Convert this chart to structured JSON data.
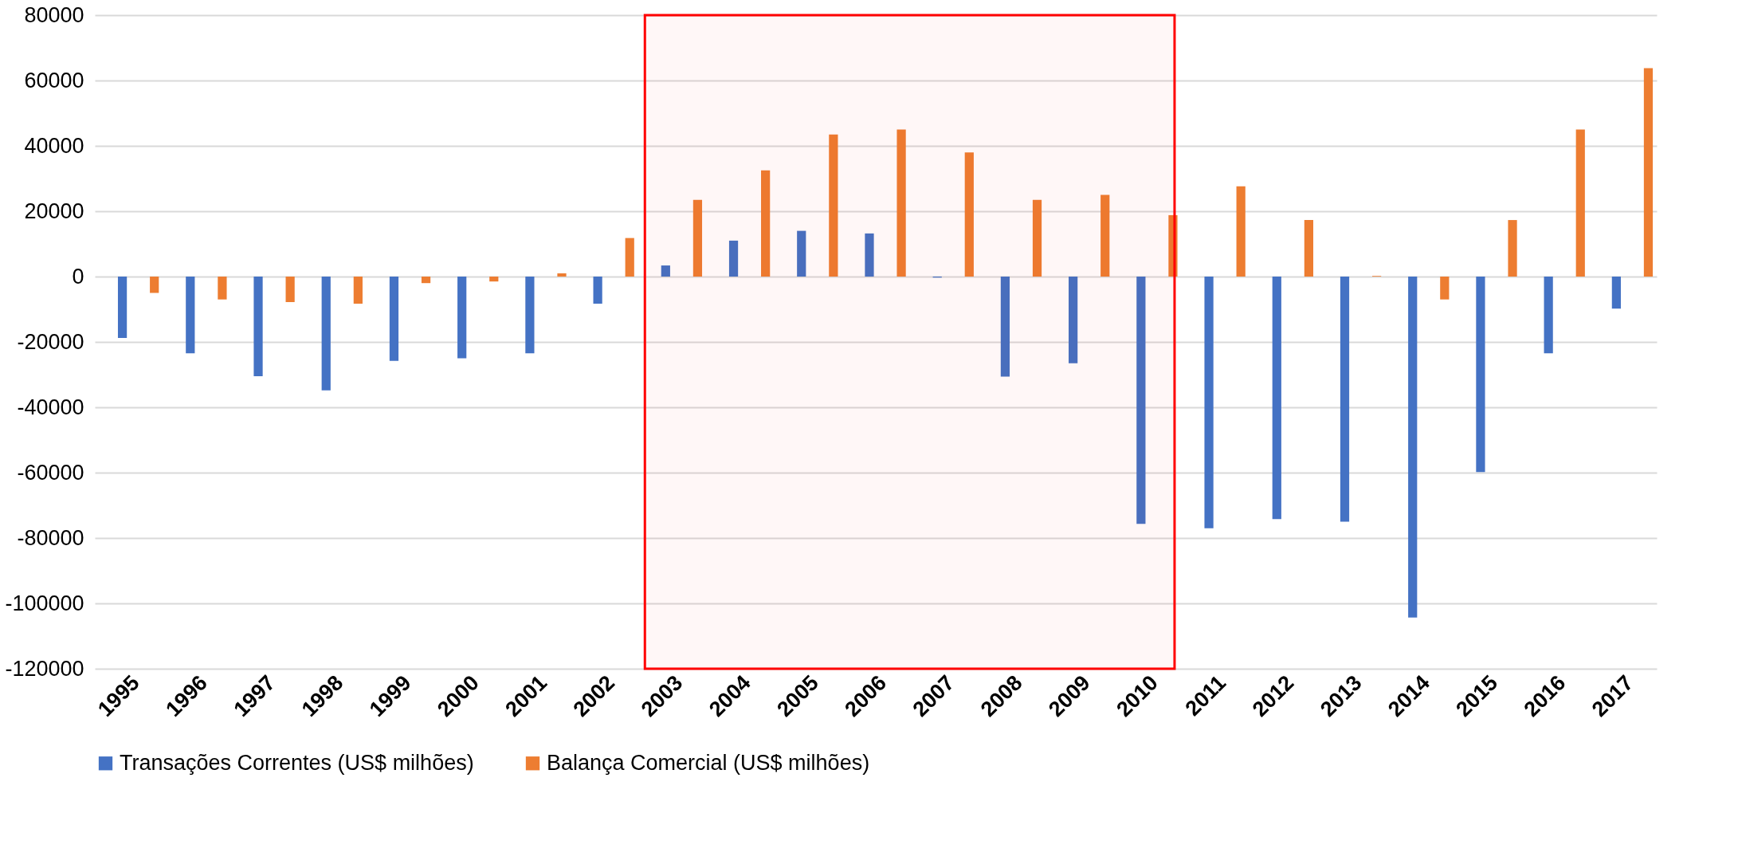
{
  "chart_data": {
    "type": "bar",
    "categories": [
      "1995",
      "1996",
      "1997",
      "1998",
      "1999",
      "2000",
      "2001",
      "2002",
      "2003",
      "2004",
      "2005",
      "2006",
      "2007",
      "2008",
      "2009",
      "2010",
      "2011",
      "2012",
      "2013",
      "2014",
      "2015",
      "2016",
      "2017"
    ],
    "series": [
      {
        "name": "Transações Correntes (US$ milhões)",
        "color": "#4472c4",
        "values": [
          -18800,
          -23500,
          -30500,
          -34800,
          -25800,
          -25000,
          -23500,
          -8300,
          3400,
          11000,
          14000,
          13200,
          -300,
          -30600,
          -26500,
          -75700,
          -77000,
          -74200,
          -75000,
          -104300,
          -59800,
          -23500,
          -9800
        ]
      },
      {
        "name": "Balança Comercial (US$ milhões)",
        "color": "#ed7d31",
        "values": [
          -5000,
          -7000,
          -7800,
          -8300,
          -2000,
          -1500,
          1000,
          11800,
          23500,
          32500,
          43500,
          45000,
          38000,
          23500,
          25000,
          18800,
          27600,
          17300,
          200,
          -7000,
          17300,
          45000,
          63800
        ]
      }
    ],
    "ylim": [
      -120000,
      80000
    ],
    "yticks": [
      -120000,
      -100000,
      -80000,
      -60000,
      -40000,
      -20000,
      0,
      20000,
      40000,
      60000,
      80000
    ],
    "grid": "y",
    "legend": "bottom",
    "bands": [
      {
        "axis": "x",
        "from": "2003",
        "to": "2010",
        "color": "#ff0000"
      }
    ]
  }
}
